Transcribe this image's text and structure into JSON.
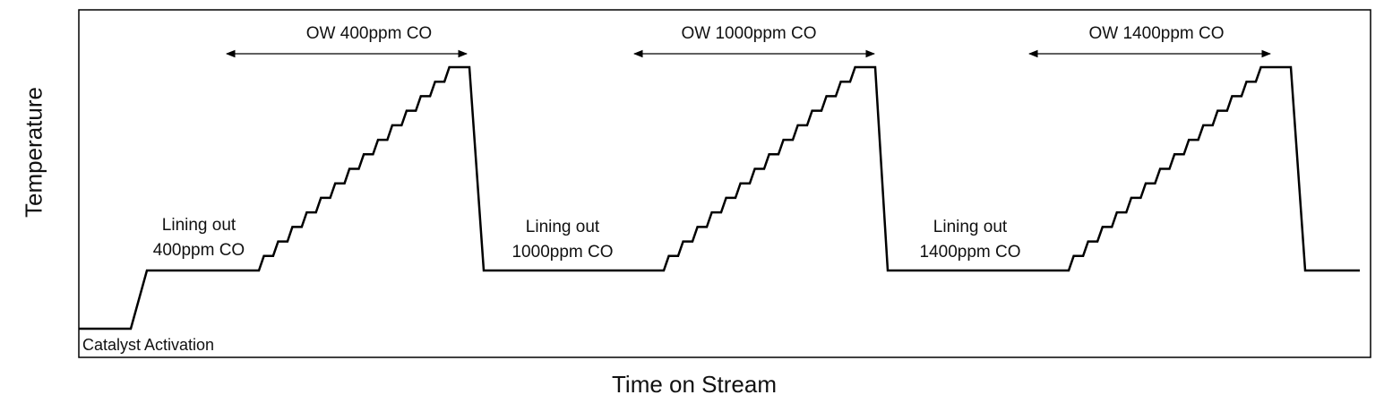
{
  "xlabel": "Time on Stream",
  "ylabel": "Temperature",
  "labels": {
    "activation": "Catalyst Activation",
    "lining1": [
      "Lining out",
      "400ppm CO"
    ],
    "lining2": [
      "Lining out",
      "1000ppm CO"
    ],
    "lining3": [
      "Lining out",
      "1400ppm CO"
    ],
    "ow1": "OW 400ppm CO",
    "ow2": "OW 1000ppm CO",
    "ow3": "OW 1400ppm CO"
  },
  "profile": {
    "segments": [
      "Catalyst Activation",
      "Lining out 400ppm CO",
      "OW 400ppm CO",
      "Lining out 1000ppm CO",
      "OW 1000ppm CO",
      "Lining out 1400ppm CO",
      "OW 1400ppm CO"
    ],
    "steps_per_ramp": 14,
    "line_color": "#000000"
  }
}
